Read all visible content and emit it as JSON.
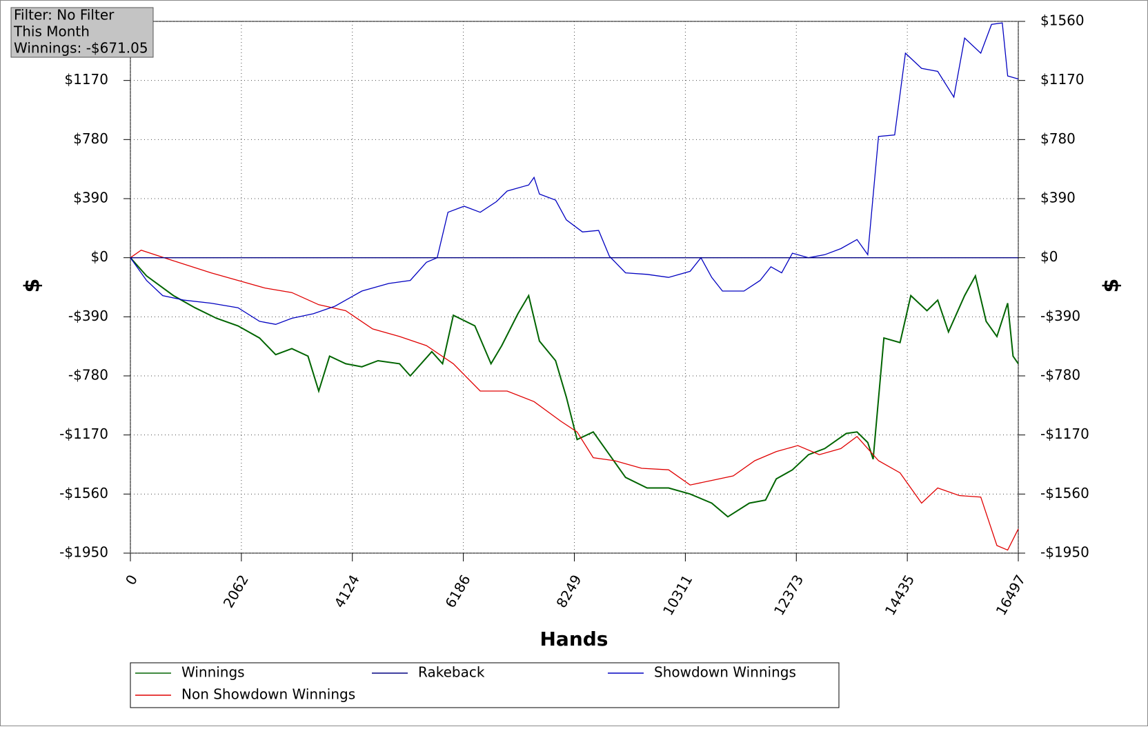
{
  "chart_data": {
    "type": "line",
    "info": [
      "Filter: No Filter",
      "This Month",
      "Winnings: -$671.05"
    ],
    "x_label": "Hands",
    "y_label": "$",
    "xlim": [
      0,
      16497
    ],
    "xticks": [
      0,
      2062,
      4124,
      6186,
      8249,
      10311,
      12373,
      14435,
      16497
    ],
    "ylim": [
      -1950,
      1560
    ],
    "yticks": [
      {
        "value": -1950,
        "label": "-$1950"
      },
      {
        "value": -1560,
        "label": "-$1560"
      },
      {
        "value": -1170,
        "label": "-$1170"
      },
      {
        "value": -780,
        "label": "-$780"
      },
      {
        "value": -390,
        "label": "-$390"
      },
      {
        "value": 0,
        "label": "$0"
      },
      {
        "value": 390,
        "label": "$390"
      },
      {
        "value": 780,
        "label": "$780"
      },
      {
        "value": 1170,
        "label": "$1170"
      },
      {
        "value": 1560,
        "label": "$1560"
      }
    ],
    "grid": true,
    "series": [
      {
        "name": "Winnings",
        "color": "#006400",
        "x": [
          0,
          300,
          800,
          1200,
          1600,
          2000,
          2400,
          2700,
          3000,
          3300,
          3500,
          3700,
          4000,
          4300,
          4600,
          5000,
          5200,
          5600,
          5800,
          6000,
          6400,
          6700,
          6900,
          7200,
          7400,
          7600,
          7900,
          8100,
          8300,
          8600,
          8900,
          9200,
          9600,
          10000,
          10400,
          10800,
          11100,
          11500,
          11800,
          12000,
          12300,
          12600,
          12900,
          13300,
          13500,
          13700,
          13800,
          14000,
          14300,
          14500,
          14800,
          15000,
          15200,
          15500,
          15700,
          15900,
          16100,
          16300,
          16400,
          16497
        ],
        "values": [
          0,
          -120,
          -250,
          -330,
          -400,
          -450,
          -530,
          -640,
          -600,
          -650,
          -880,
          -650,
          -700,
          -720,
          -680,
          -700,
          -780,
          -620,
          -700,
          -380,
          -450,
          -700,
          -580,
          -370,
          -250,
          -550,
          -680,
          -920,
          -1200,
          -1150,
          -1300,
          -1450,
          -1520,
          -1520,
          -1560,
          -1620,
          -1710,
          -1620,
          -1600,
          -1460,
          -1400,
          -1300,
          -1260,
          -1160,
          -1150,
          -1220,
          -1330,
          -530,
          -560,
          -250,
          -350,
          -280,
          -490,
          -250,
          -120,
          -420,
          -520,
          -300,
          -650,
          -700
        ]
      },
      {
        "name": "Rakeback",
        "color": "#000080",
        "x": [
          0,
          16497
        ],
        "values": [
          0,
          0
        ]
      },
      {
        "name": "Showdown Winnings",
        "color": "#0000c0",
        "x": [
          0,
          300,
          600,
          1000,
          1500,
          2000,
          2400,
          2700,
          3000,
          3400,
          3800,
          4000,
          4300,
          4800,
          5200,
          5500,
          5700,
          5900,
          6200,
          6500,
          6800,
          7000,
          7400,
          7500,
          7600,
          7900,
          8100,
          8400,
          8700,
          8900,
          9200,
          9600,
          10000,
          10400,
          10600,
          10800,
          11000,
          11400,
          11700,
          11900,
          12100,
          12300,
          12600,
          12900,
          13200,
          13500,
          13700,
          13900,
          14200,
          14400,
          14700,
          15000,
          15300,
          15500,
          15800,
          16000,
          16200,
          16300,
          16497
        ],
        "values": [
          0,
          -150,
          -250,
          -280,
          -300,
          -330,
          -420,
          -440,
          -400,
          -370,
          -320,
          -280,
          -220,
          -170,
          -150,
          -30,
          0,
          300,
          340,
          300,
          370,
          440,
          480,
          530,
          420,
          380,
          250,
          170,
          180,
          10,
          -100,
          -110,
          -130,
          -90,
          0,
          -130,
          -220,
          -220,
          -150,
          -60,
          -100,
          30,
          0,
          20,
          60,
          120,
          20,
          800,
          810,
          1350,
          1250,
          1230,
          1060,
          1450,
          1350,
          1540,
          1550,
          1200,
          1180
        ]
      },
      {
        "name": "Non Showdown Winnings",
        "color": "#e00000",
        "x": [
          0,
          200,
          800,
          1500,
          2000,
          2500,
          3000,
          3500,
          4000,
          4500,
          5000,
          5500,
          6000,
          6500,
          7000,
          7500,
          8000,
          8300,
          8600,
          9000,
          9500,
          10000,
          10400,
          10800,
          11200,
          11600,
          12000,
          12400,
          12800,
          13200,
          13500,
          13900,
          14300,
          14700,
          15000,
          15400,
          15800,
          16100,
          16300,
          16497
        ],
        "values": [
          0,
          50,
          -20,
          -100,
          -150,
          -200,
          -230,
          -310,
          -350,
          -470,
          -520,
          -580,
          -700,
          -880,
          -880,
          -950,
          -1080,
          -1150,
          -1320,
          -1340,
          -1390,
          -1400,
          -1500,
          -1470,
          -1440,
          -1340,
          -1280,
          -1240,
          -1300,
          -1260,
          -1180,
          -1340,
          -1420,
          -1620,
          -1520,
          -1570,
          -1580,
          -1900,
          -1930,
          -1790
        ]
      }
    ]
  }
}
